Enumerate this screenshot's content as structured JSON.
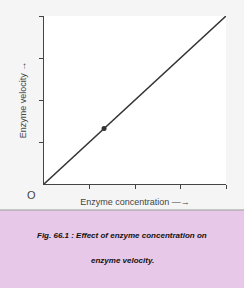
{
  "chart_data": {
    "type": "line",
    "x_label": "Enzyme concentration —→",
    "y_label": "Enzyme velocity →",
    "series": [
      {
        "type": "line",
        "color": "#333333",
        "x": [
          0,
          1
        ],
        "values": [
          0,
          1
        ]
      },
      {
        "type": "scatter",
        "color": "#333333",
        "x": [
          0.33
        ],
        "values": [
          0.33
        ]
      }
    ],
    "xlim": [
      0,
      1.0
    ],
    "ylim": [
      0,
      1.0
    ],
    "xticks": [
      0.25,
      0.5,
      0.75,
      1.0
    ],
    "yticks": [
      0.25,
      0.5,
      0.75,
      1.0
    ],
    "tick_labels": false,
    "grid": false,
    "annotations": [
      "O",
      "Fig. 66.1 : Effect of enzyme concentration on",
      "enzyme velocity."
    ]
  }
}
